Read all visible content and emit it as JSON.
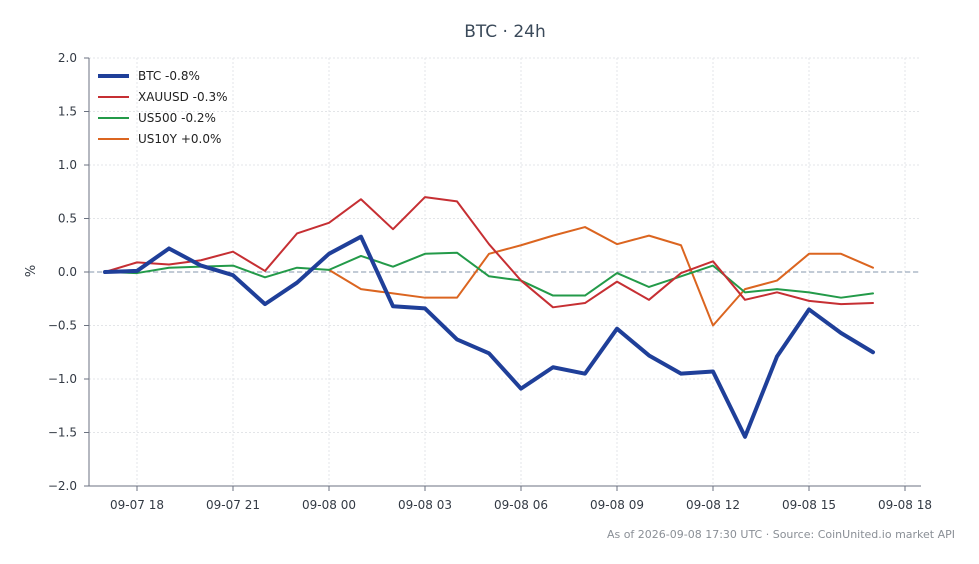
{
  "chart_data": {
    "type": "line",
    "title": "BTC · 24h",
    "xlabel": "",
    "ylabel": "%",
    "ylim": [
      -2.0,
      2.0
    ],
    "yticks": [
      -2.0,
      -1.5,
      -1.0,
      -0.5,
      0.0,
      0.5,
      1.0,
      1.5,
      2.0
    ],
    "ytick_labels": [
      "−2.0",
      "−1.5",
      "−1.0",
      "−0.5",
      "0.0",
      "0.5",
      "1.0",
      "1.5",
      "2.0"
    ],
    "xlim": [
      "2026-09-07 16:30",
      "2026-09-08 18:30"
    ],
    "xticks": [
      "2026-09-07 18:00",
      "2026-09-07 21:00",
      "2026-09-08 00:00",
      "2026-09-08 03:00",
      "2026-09-08 06:00",
      "2026-09-08 09:00",
      "2026-09-08 12:00",
      "2026-09-08 15:00",
      "2026-09-08 18:00"
    ],
    "xtick_labels": [
      "09-07 18",
      "09-07 21",
      "09-08 00",
      "09-08 03",
      "09-08 06",
      "09-08 09",
      "09-08 12",
      "09-08 15",
      "09-08 18"
    ],
    "x": [
      "2026-09-07 17:00",
      "2026-09-07 18:00",
      "2026-09-07 19:00",
      "2026-09-07 20:00",
      "2026-09-07 21:00",
      "2026-09-07 22:00",
      "2026-09-07 23:00",
      "2026-09-08 00:00",
      "2026-09-08 01:00",
      "2026-09-08 02:00",
      "2026-09-08 03:00",
      "2026-09-08 04:00",
      "2026-09-08 05:00",
      "2026-09-08 06:00",
      "2026-09-08 07:00",
      "2026-09-08 08:00",
      "2026-09-08 09:00",
      "2026-09-08 10:00",
      "2026-09-08 11:00",
      "2026-09-08 12:00",
      "2026-09-08 13:00",
      "2026-09-08 14:00",
      "2026-09-08 15:00",
      "2026-09-08 16:00",
      "2026-09-08 17:00"
    ],
    "grid": true,
    "legend_position": "top-left",
    "zero_line": true,
    "series": [
      {
        "name": "BTC -0.8%",
        "color": "#1f3f99",
        "width": 4,
        "values": [
          0.0,
          0.01,
          0.22,
          0.06,
          -0.03,
          -0.3,
          -0.1,
          0.17,
          0.33,
          -0.32,
          -0.34,
          -0.63,
          -0.76,
          -1.09,
          -0.89,
          -0.95,
          -0.53,
          -0.78,
          -0.95,
          -0.93,
          -1.54,
          -0.79,
          -0.35,
          -0.57,
          -0.75
        ]
      },
      {
        "name": "XAUUSD -0.3%",
        "color": "#c62f33",
        "width": 2,
        "values": [
          0.0,
          0.09,
          0.07,
          0.11,
          0.19,
          0.01,
          0.36,
          0.46,
          0.68,
          0.4,
          0.7,
          0.66,
          0.26,
          -0.08,
          -0.33,
          -0.29,
          -0.09,
          -0.26,
          -0.01,
          0.1,
          -0.26,
          -0.19,
          -0.27,
          -0.3,
          -0.29
        ]
      },
      {
        "name": "US500 -0.2%",
        "color": "#239a49",
        "width": 2,
        "values": [
          0.0,
          -0.01,
          0.04,
          0.05,
          0.06,
          -0.05,
          0.04,
          0.02,
          0.15,
          0.05,
          0.17,
          0.18,
          -0.04,
          -0.08,
          -0.22,
          -0.22,
          -0.01,
          -0.14,
          -0.04,
          0.06,
          -0.19,
          -0.16,
          -0.19,
          -0.24,
          -0.2
        ]
      },
      {
        "name": "US10Y +0.0%",
        "color": "#db6520",
        "width": 2,
        "values": [
          null,
          null,
          null,
          null,
          null,
          null,
          null,
          0.02,
          -0.16,
          -0.2,
          -0.24,
          -0.24,
          0.17,
          0.25,
          0.34,
          0.42,
          0.26,
          0.34,
          0.25,
          -0.5,
          -0.16,
          -0.08,
          0.17,
          0.17,
          0.04
        ]
      }
    ]
  },
  "footer": {
    "text": "As of 2026-09-08 17:30 UTC · Source: CoinUnited.io market API"
  }
}
